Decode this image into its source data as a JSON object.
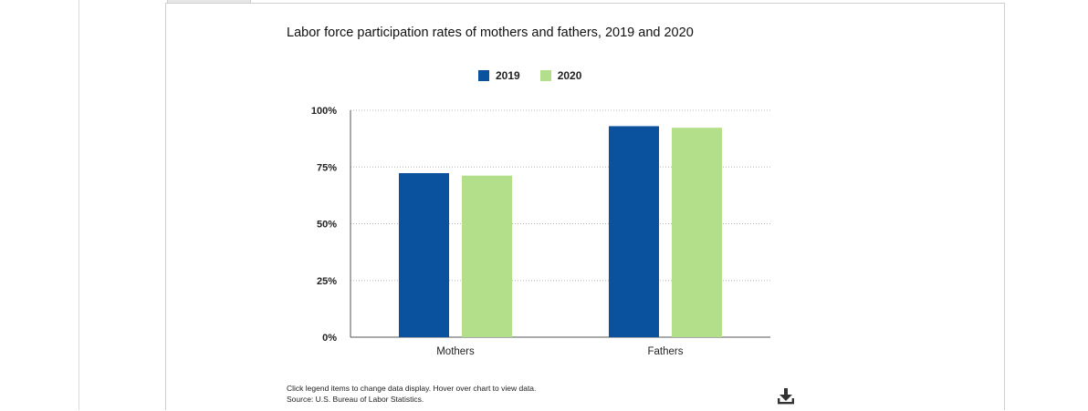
{
  "chart_data": {
    "type": "bar",
    "title": "Labor force participation rates of mothers and fathers, 2019 and 2020",
    "categories": [
      "Mothers",
      "Fathers"
    ],
    "series": [
      {
        "name": "2019",
        "color": "#0a519e",
        "values": [
          72.3,
          93.0
        ]
      },
      {
        "name": "2020",
        "color": "#b3df8a",
        "values": [
          71.2,
          92.3
        ]
      }
    ],
    "ylim": [
      0,
      100
    ],
    "yticks": [
      0,
      25,
      50,
      75,
      100
    ],
    "ytick_labels": [
      "0%",
      "25%",
      "50%",
      "75%",
      "100%"
    ],
    "grid": true,
    "legend_position": "top-center"
  },
  "notes": {
    "line1": "Click legend items to change data display. Hover over chart to view data.",
    "line2": "Source: U.S. Bureau of Labor Statistics."
  },
  "icons": {
    "download": "download-icon"
  }
}
